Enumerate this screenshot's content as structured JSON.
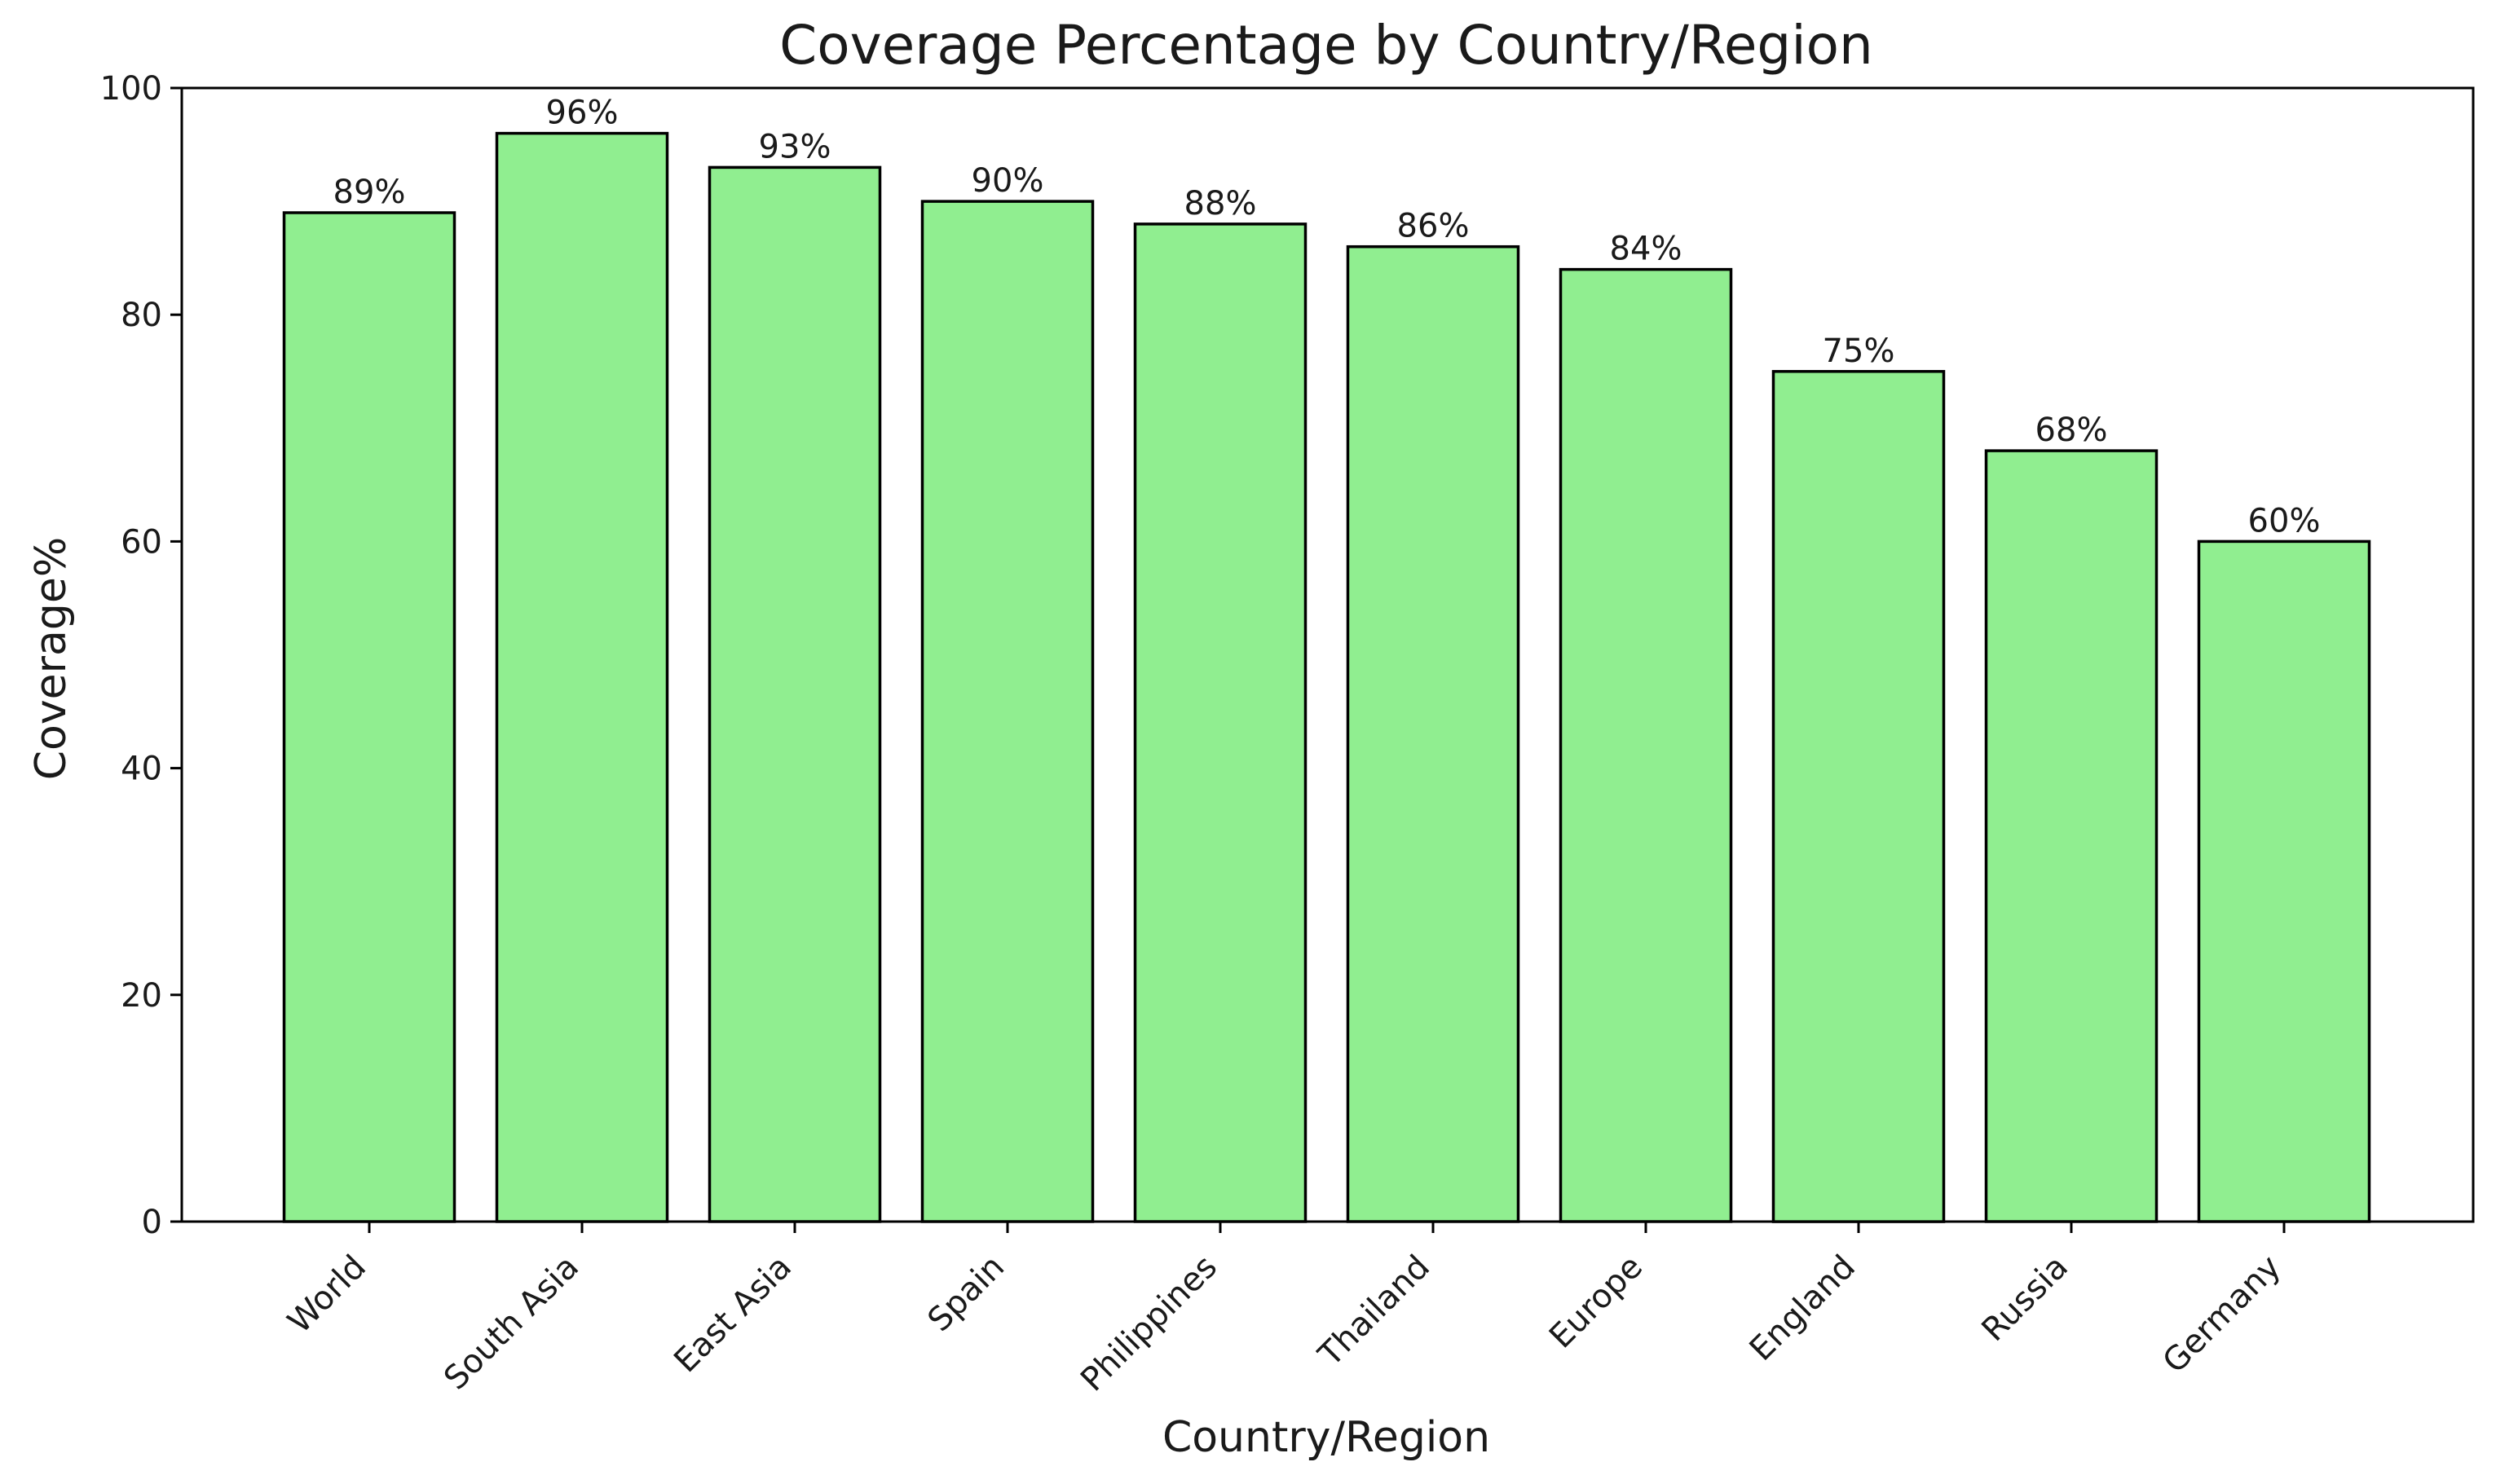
{
  "chart_data": {
    "type": "bar",
    "title": "Coverage Percentage by Country/Region",
    "xlabel": "Country/Region",
    "ylabel": "Coverage%",
    "categories": [
      "World",
      "South Asia",
      "East Asia",
      "Spain",
      "Philippines",
      "Thailand",
      "Europe",
      "England",
      "Russia",
      "Germany"
    ],
    "values": [
      89,
      96,
      93,
      90,
      88,
      86,
      84,
      75,
      68,
      60
    ],
    "value_labels": [
      "89%",
      "96%",
      "93%",
      "90%",
      "88%",
      "86%",
      "84%",
      "75%",
      "68%",
      "60%"
    ],
    "ylim": [
      0,
      100
    ],
    "yticks": [
      0,
      20,
      40,
      60,
      80,
      100
    ],
    "ytick_labels": [
      "0",
      "20",
      "40",
      "60",
      "80",
      "100"
    ],
    "grid": false,
    "legend": "none",
    "colors": {
      "bar_fill": "#90ee90",
      "bar_edge": "#000000",
      "axis": "#000000",
      "text": "#1a1a1a"
    }
  }
}
